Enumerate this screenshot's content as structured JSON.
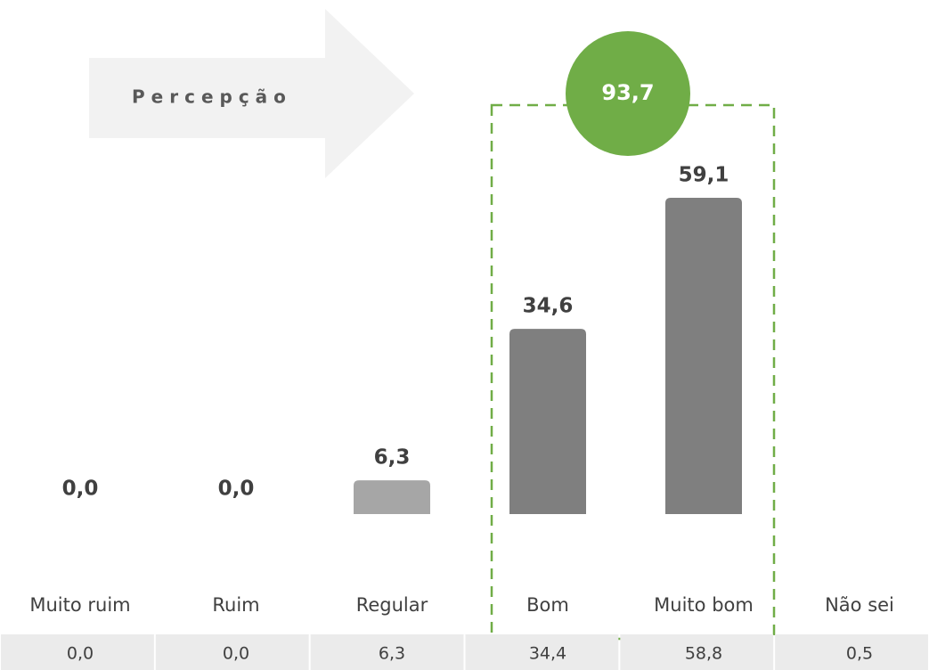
{
  "chart_data": {
    "type": "bar",
    "categories": [
      "Muito ruim",
      "Ruim",
      "Regular",
      "Bom",
      "Muito bom",
      "Não sei"
    ],
    "values": [
      0,
      0,
      6.3,
      34.6,
      59.1,
      null
    ],
    "value_labels": [
      "0,0",
      "0,0",
      "6,3",
      "34,6",
      "59,1",
      null
    ],
    "colors": [
      "#7f7f7f",
      "#7f7f7f",
      "#a6a6a6",
      "#7f7f7f",
      "#7f7f7f",
      null
    ],
    "table_row": [
      "0,0",
      "0,0",
      "6,3",
      "34,4",
      "58,8",
      "0,5"
    ],
    "arrow_label": "Percepção",
    "highlight_label": "93,7",
    "highlight_color": "#70ad47"
  }
}
